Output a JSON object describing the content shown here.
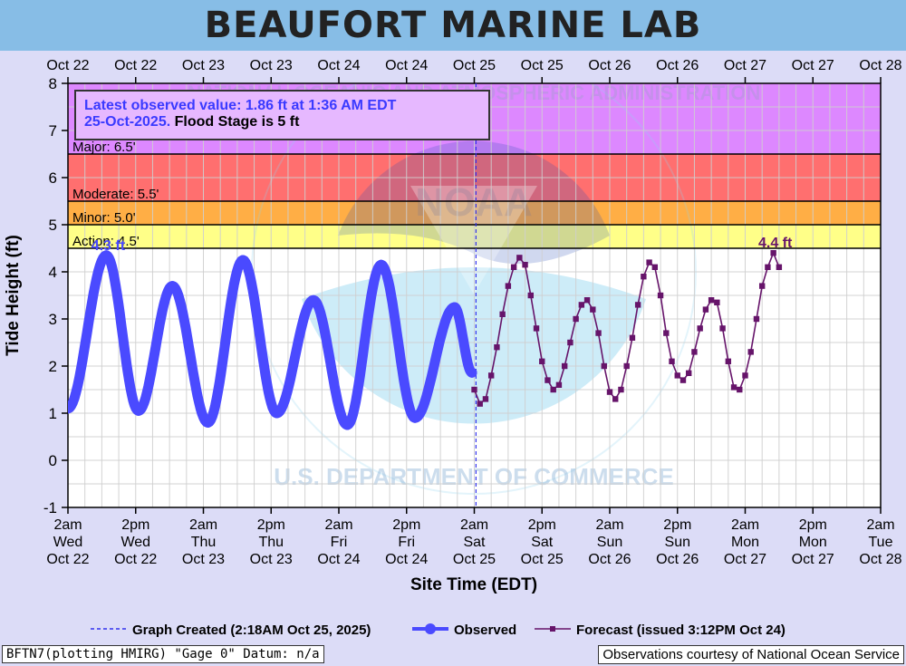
{
  "header": {
    "title": "BEAUFORT MARINE LAB"
  },
  "footer": {
    "left": "BFTN7(plotting HMIRG) \"Gage 0\" Datum: n/a",
    "right": "Observations courtesy of National Ocean Service"
  },
  "chart_data": {
    "type": "line",
    "ylabel": "Tide Height (ft)",
    "xlabel": "Site Time (EDT)",
    "ylim": [
      -1,
      8
    ],
    "xlim_hours": [
      0,
      144
    ],
    "grid": true,
    "top_tick_labels": [
      "Oct 22",
      "Oct 22",
      "Oct 23",
      "Oct 23",
      "Oct 24",
      "Oct 24",
      "Oct 25",
      "Oct 25",
      "Oct 26",
      "Oct 26",
      "Oct 27",
      "Oct 27",
      "Oct 28"
    ],
    "bottom_ticks": [
      {
        "time": "2am",
        "day": "Wed",
        "date": "Oct 22"
      },
      {
        "time": "2pm",
        "day": "Wed",
        "date": "Oct 22"
      },
      {
        "time": "2am",
        "day": "Thu",
        "date": "Oct 23"
      },
      {
        "time": "2pm",
        "day": "Thu",
        "date": "Oct 23"
      },
      {
        "time": "2am",
        "day": "Fri",
        "date": "Oct 24"
      },
      {
        "time": "2pm",
        "day": "Fri",
        "date": "Oct 24"
      },
      {
        "time": "2am",
        "day": "Sat",
        "date": "Oct 25"
      },
      {
        "time": "2pm",
        "day": "Sat",
        "date": "Oct 25"
      },
      {
        "time": "2am",
        "day": "Sun",
        "date": "Oct 26"
      },
      {
        "time": "2pm",
        "day": "Sun",
        "date": "Oct 26"
      },
      {
        "time": "2am",
        "day": "Mon",
        "date": "Oct 27"
      },
      {
        "time": "2pm",
        "day": "Mon",
        "date": "Oct 27"
      },
      {
        "time": "2am",
        "day": "Tue",
        "date": "Oct 28"
      }
    ],
    "flood_bands": [
      {
        "label": "Major: 6.5'",
        "from": 6.5,
        "to": 8,
        "color": "#dd88ff"
      },
      {
        "label": "Moderate: 5.5'",
        "from": 5.5,
        "to": 6.5,
        "color": "#ff6f6f"
      },
      {
        "label": "Minor: 5.0'",
        "from": 5.0,
        "to": 5.5,
        "color": "#ffae45"
      },
      {
        "label": "Action: 4.5'",
        "from": 4.5,
        "to": 5.0,
        "color": "#ffff88"
      }
    ],
    "info_box": {
      "line1": "Latest observed value: 1.86 ft at 1:36 AM EDT",
      "line2_obs": "25-Oct-2025.",
      "line2_flood": " Flood Stage is 5 ft"
    },
    "graph_created_hour": 72.3,
    "observed": {
      "name": "Observed",
      "color": "#4a4aff",
      "hours": [
        0,
        6.8,
        12.5,
        18.5,
        24.8,
        31,
        37,
        43.5,
        49.5,
        55.5,
        61.5,
        68.5,
        71.6
      ],
      "values": [
        1.1,
        4.35,
        1.05,
        3.7,
        0.8,
        4.25,
        1.0,
        3.4,
        0.75,
        4.15,
        0.9,
        3.25,
        1.86
      ]
    },
    "forecast": {
      "name": "Forecast (issued 3:12PM Oct 24)",
      "color": "#66146a",
      "hours": [
        72,
        73,
        74,
        75,
        76,
        77,
        78,
        79,
        80,
        81,
        82,
        83,
        84,
        85,
        86,
        87,
        88,
        89,
        90,
        91,
        92,
        93,
        94,
        95,
        96,
        97,
        98,
        99,
        100,
        101,
        102,
        103,
        104,
        105,
        106,
        107,
        108,
        109,
        110,
        111,
        112,
        113,
        114,
        115,
        116,
        117,
        118,
        119,
        120,
        121,
        122,
        123,
        124,
        125,
        126
      ],
      "values": [
        1.5,
        1.2,
        1.3,
        1.8,
        2.4,
        3.1,
        3.7,
        4.1,
        4.3,
        4.15,
        3.5,
        2.8,
        2.1,
        1.7,
        1.5,
        1.6,
        2.0,
        2.5,
        3.0,
        3.3,
        3.4,
        3.2,
        2.7,
        2.0,
        1.45,
        1.3,
        1.5,
        2.0,
        2.6,
        3.3,
        3.9,
        4.2,
        4.1,
        3.5,
        2.7,
        2.1,
        1.8,
        1.7,
        1.85,
        2.3,
        2.8,
        3.2,
        3.4,
        3.35,
        2.8,
        2.1,
        1.55,
        1.5,
        1.8,
        2.3,
        3.0,
        3.7,
        4.1,
        4.4,
        4.1
      ]
    },
    "annotations": [
      {
        "text": "4.3 ft",
        "hour": 6.8,
        "value": 4.35,
        "series": "observed"
      },
      {
        "text": "4.4 ft",
        "hour": 125,
        "value": 4.4,
        "series": "forecast"
      }
    ],
    "watermark": {
      "top_text": "NATIONAL OCEANIC AND ATMOSPHERIC ADMINISTRATION",
      "bottom_text": "U.S. DEPARTMENT OF COMMERCE",
      "logo_text": "NOAA"
    },
    "legend": {
      "graph_created": "Graph Created (2:18AM Oct 25, 2025)",
      "observed": "Observed",
      "forecast": "Forecast (issued 3:12PM Oct 24)"
    }
  }
}
